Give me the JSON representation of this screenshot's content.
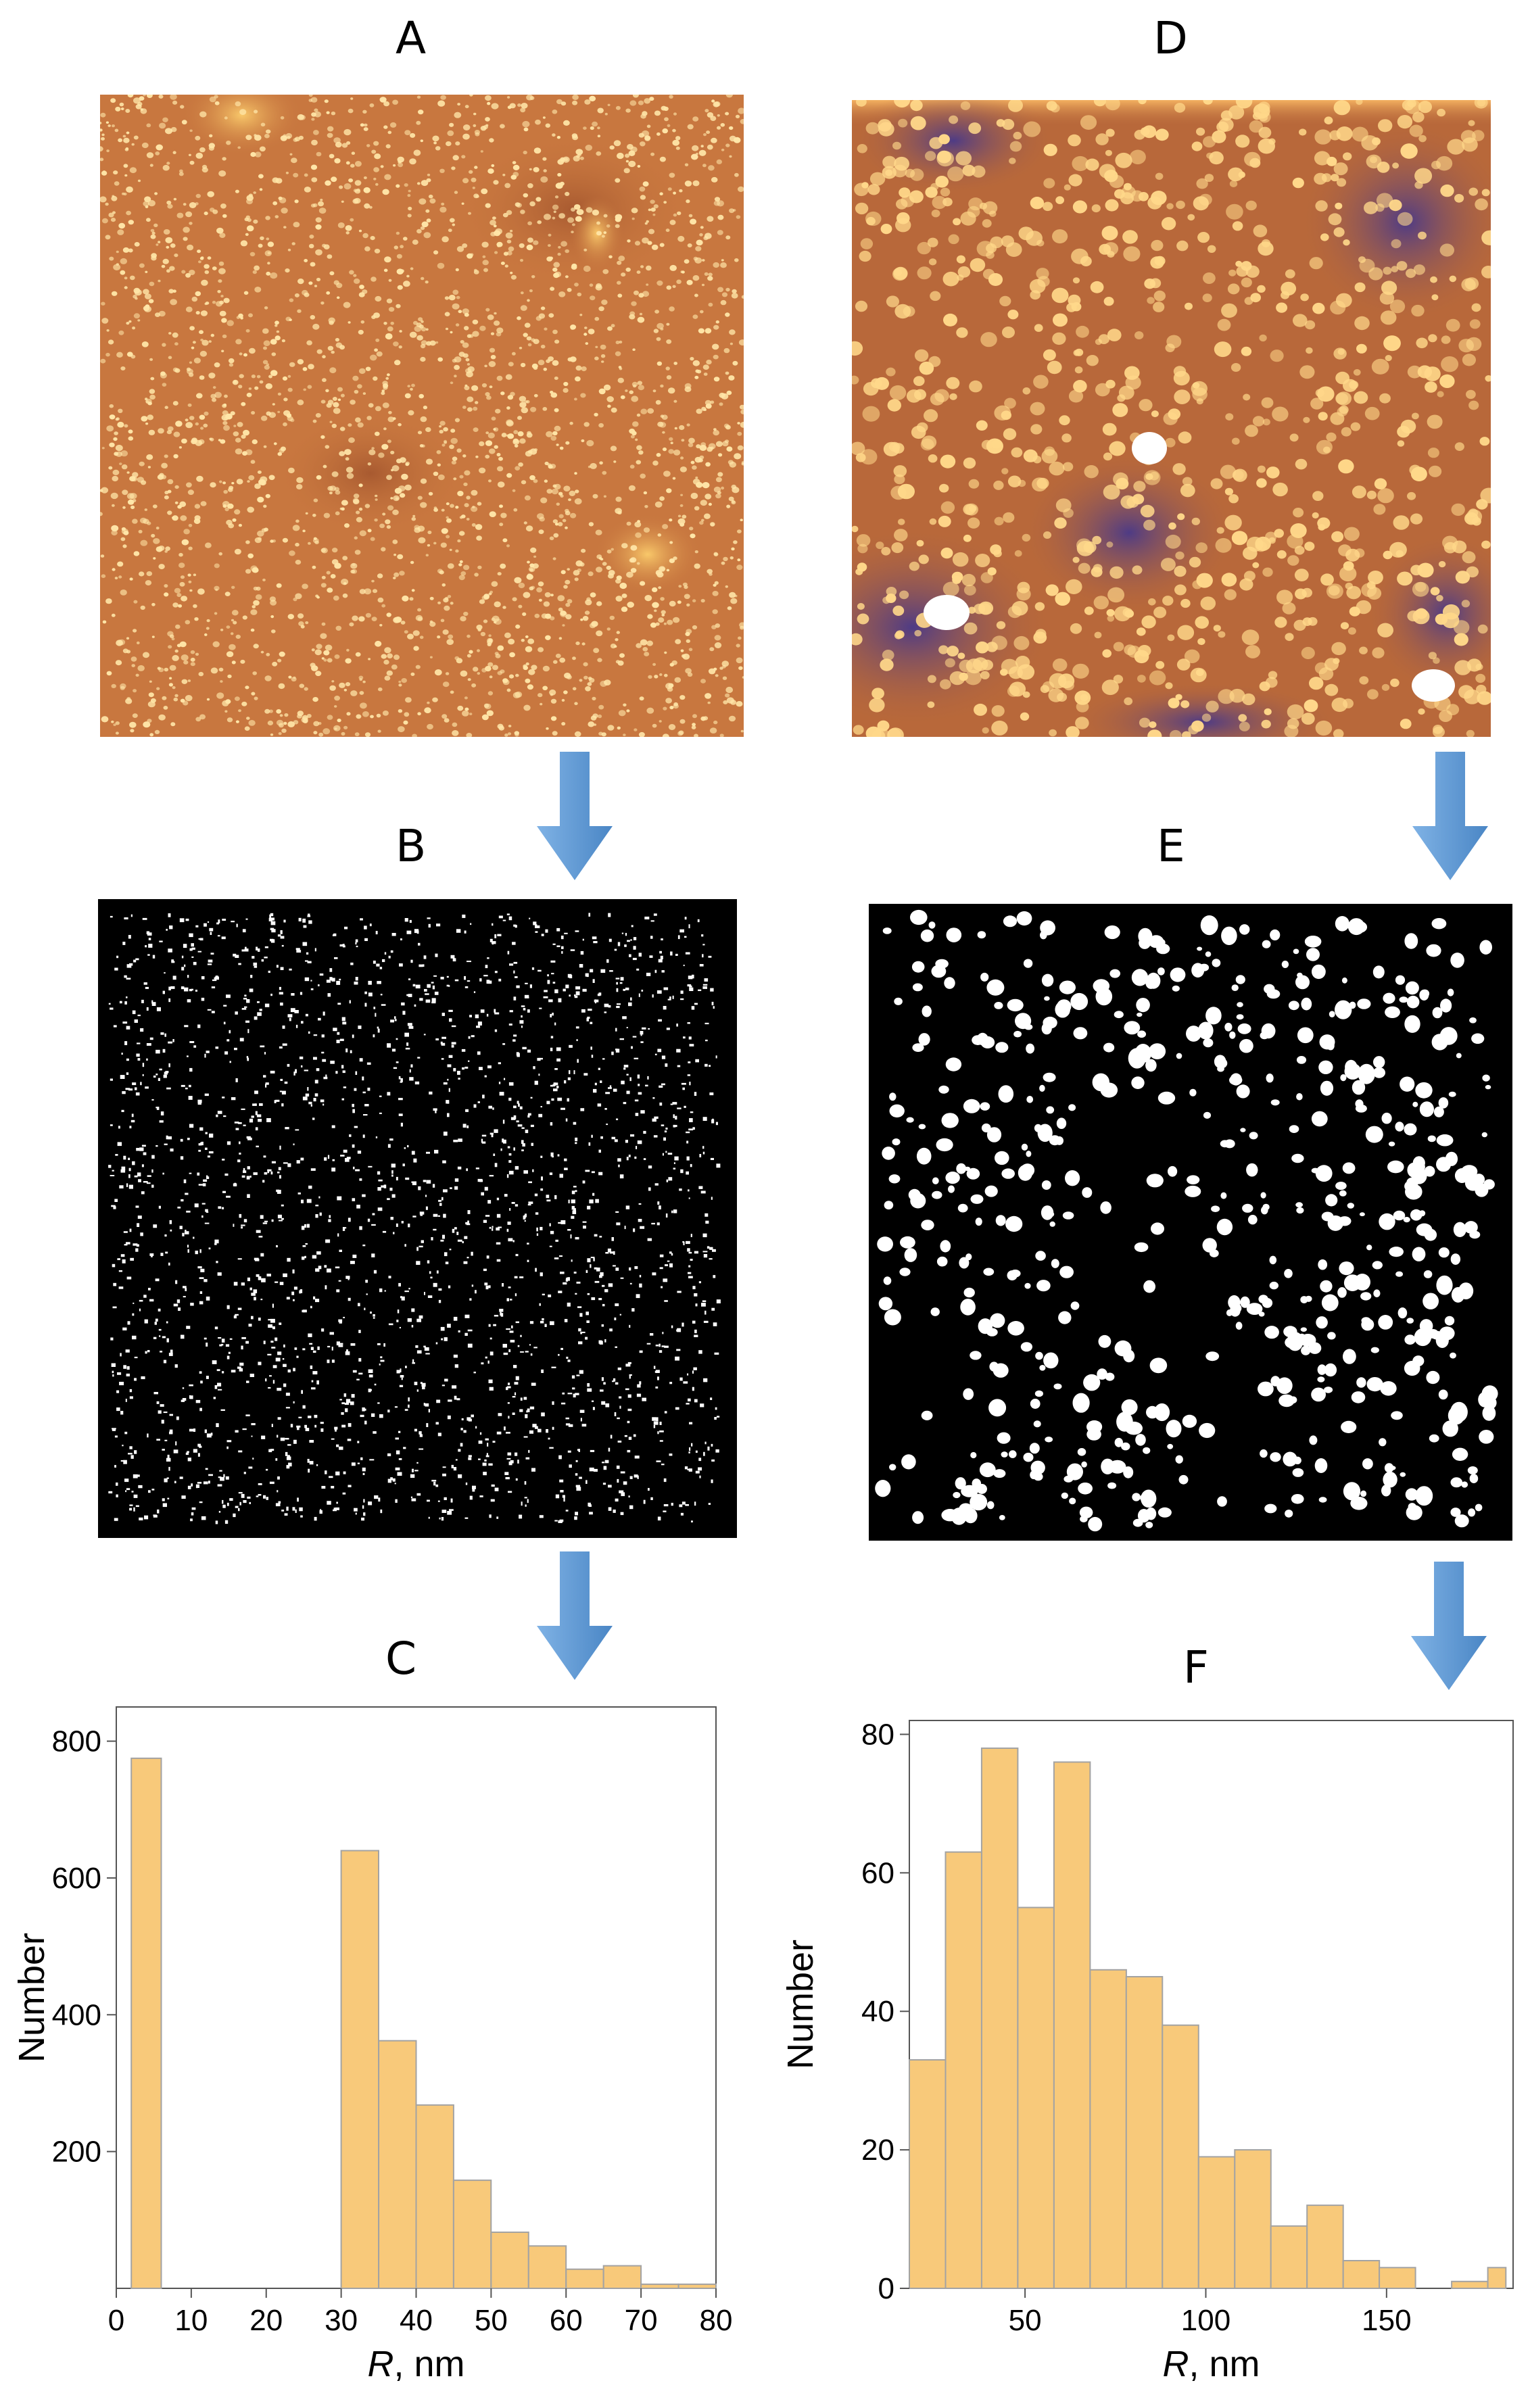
{
  "panels": {
    "a": {
      "label": "A"
    },
    "b": {
      "label": "B"
    },
    "c": {
      "label": "C"
    },
    "d": {
      "label": "D"
    },
    "e": {
      "label": "E"
    },
    "f": {
      "label": "F"
    }
  },
  "colors": {
    "afm_base_a": "#c8773f",
    "afm_base_d": "#b8683a",
    "afm_dark_d": "#5a3f86",
    "particle": "#ffe6a8",
    "bar_fill": "#f8c97a",
    "bar_stroke": "#a3a3a3",
    "arrow": "#4a86c5"
  },
  "icons": [
    "arrow-down-icon"
  ],
  "chart_data": [
    {
      "id": "C",
      "type": "bar",
      "xlabel_italic": "R",
      "xlabel_rest": ", nm",
      "ylabel": "Number",
      "xlim": [
        0,
        80
      ],
      "ylim": [
        0,
        850
      ],
      "xticks": [
        0,
        10,
        20,
        30,
        40,
        50,
        60,
        70,
        80
      ],
      "yticks": [
        200,
        400,
        600,
        800
      ],
      "bins": [
        {
          "x0": 2,
          "x1": 6,
          "value": 775
        },
        {
          "x0": 30,
          "x1": 35,
          "value": 640
        },
        {
          "x0": 35,
          "x1": 40,
          "value": 362
        },
        {
          "x0": 40,
          "x1": 45,
          "value": 268
        },
        {
          "x0": 45,
          "x1": 50,
          "value": 158
        },
        {
          "x0": 50,
          "x1": 55,
          "value": 82
        },
        {
          "x0": 55,
          "x1": 60,
          "value": 62
        },
        {
          "x0": 60,
          "x1": 65,
          "value": 28
        },
        {
          "x0": 65,
          "x1": 70,
          "value": 33
        },
        {
          "x0": 70,
          "x1": 75,
          "value": 6
        },
        {
          "x0": 75,
          "x1": 80,
          "value": 6
        }
      ]
    },
    {
      "id": "F",
      "type": "bar",
      "xlabel_italic": "R",
      "xlabel_rest": ", nm",
      "ylabel": "Number",
      "xlim": [
        18,
        185
      ],
      "ylim": [
        0,
        82
      ],
      "xticks": [
        50,
        100,
        150
      ],
      "yticks": [
        0,
        20,
        40,
        60,
        80
      ],
      "bins": [
        {
          "x0": 18,
          "x1": 28,
          "value": 33
        },
        {
          "x0": 28,
          "x1": 38,
          "value": 63
        },
        {
          "x0": 38,
          "x1": 48,
          "value": 78
        },
        {
          "x0": 48,
          "x1": 58,
          "value": 55
        },
        {
          "x0": 58,
          "x1": 68,
          "value": 76
        },
        {
          "x0": 68,
          "x1": 78,
          "value": 46
        },
        {
          "x0": 78,
          "x1": 88,
          "value": 45
        },
        {
          "x0": 88,
          "x1": 98,
          "value": 38
        },
        {
          "x0": 98,
          "x1": 108,
          "value": 19
        },
        {
          "x0": 108,
          "x1": 118,
          "value": 20
        },
        {
          "x0": 118,
          "x1": 128,
          "value": 9
        },
        {
          "x0": 128,
          "x1": 138,
          "value": 12
        },
        {
          "x0": 138,
          "x1": 148,
          "value": 4
        },
        {
          "x0": 148,
          "x1": 158,
          "value": 3
        },
        {
          "x0": 168,
          "x1": 178,
          "value": 1
        },
        {
          "x0": 178,
          "x1": 183,
          "value": 3
        }
      ]
    }
  ]
}
